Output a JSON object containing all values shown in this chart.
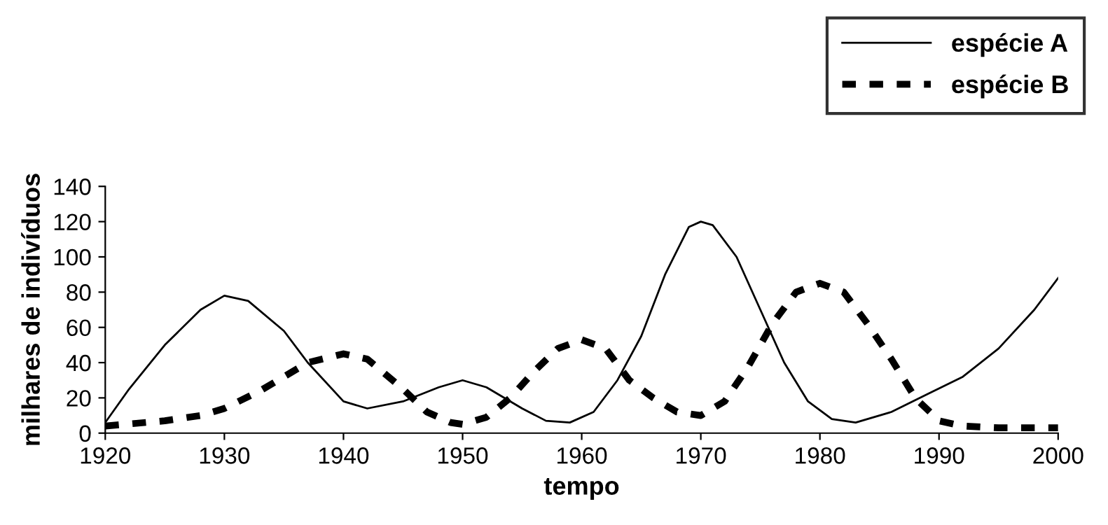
{
  "chart_data": {
    "type": "line",
    "xlabel": "tempo",
    "ylabel": "milhares de indivíduos",
    "xlim": [
      1920,
      2000
    ],
    "xticks": [
      1920,
      1930,
      1940,
      1950,
      1960,
      1970,
      1980,
      1990,
      2000
    ],
    "ylim": [
      0,
      140
    ],
    "yticks": [
      0,
      20,
      40,
      60,
      80,
      100,
      120,
      140
    ],
    "grid": false,
    "legend": "top right",
    "series": [
      {
        "name": "espécie A",
        "color": "#000000",
        "line_style": "solid",
        "x": [
          1920,
          1922,
          1925,
          1928,
          1930,
          1932,
          1935,
          1937,
          1940,
          1942,
          1945,
          1948,
          1950,
          1952,
          1955,
          1957,
          1959,
          1961,
          1963,
          1965,
          1967,
          1969,
          1970,
          1971,
          1973,
          1975,
          1977,
          1979,
          1981,
          1983,
          1986,
          1989,
          1992,
          1995,
          1998,
          2000
        ],
        "values": [
          6,
          25,
          50,
          70,
          78,
          75,
          58,
          40,
          18,
          14,
          18,
          26,
          30,
          26,
          14,
          7,
          6,
          12,
          30,
          55,
          90,
          117,
          120,
          118,
          100,
          70,
          40,
          18,
          8,
          6,
          12,
          22,
          32,
          48,
          70,
          88
        ]
      },
      {
        "name": "espécie B",
        "color": "#000000",
        "line_style": "dashed",
        "x": [
          1920,
          1925,
          1928,
          1930,
          1933,
          1935,
          1937,
          1940,
          1942,
          1945,
          1947,
          1949,
          1950,
          1952,
          1954,
          1956,
          1958,
          1960,
          1962,
          1964,
          1966,
          1968,
          1970,
          1972,
          1974,
          1976,
          1978,
          1980,
          1982,
          1984,
          1986,
          1988,
          1990,
          1992,
          1995,
          2000
        ],
        "values": [
          4,
          7,
          10,
          14,
          24,
          32,
          40,
          45,
          42,
          25,
          12,
          6,
          5,
          9,
          20,
          35,
          48,
          53,
          48,
          30,
          20,
          12,
          10,
          18,
          38,
          62,
          80,
          85,
          80,
          62,
          42,
          20,
          7,
          4,
          3,
          3
        ]
      }
    ]
  }
}
